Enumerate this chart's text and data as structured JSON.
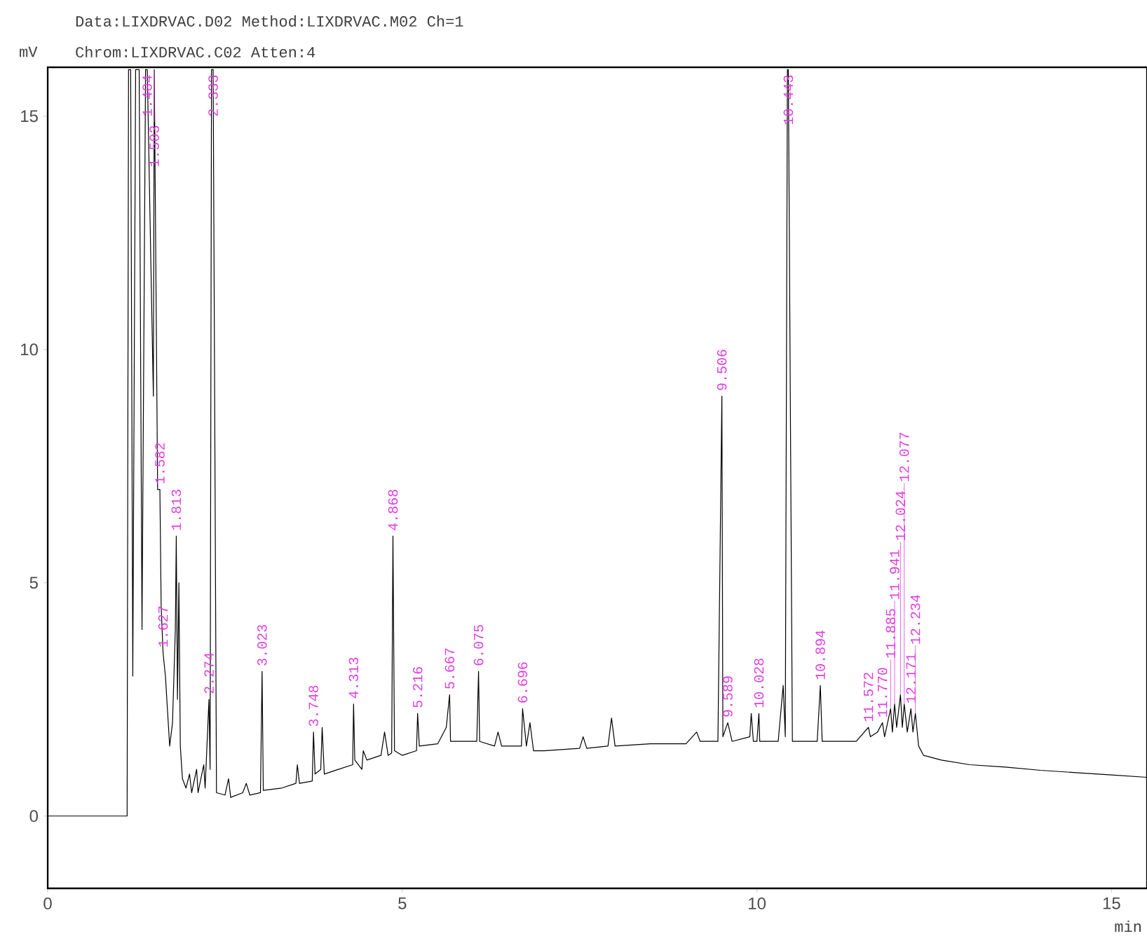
{
  "chart_data": {
    "type": "line",
    "title": "Data:LIXDRVAC.D02   Method:LIXDRVAC.M02   Ch=1",
    "subtitle": "Chrom:LIXDRVAC.C02   Atten:4",
    "xlabel": "min",
    "ylabel": "mV",
    "color": "#000000",
    "x": [
      0,
      1.12,
      1.14,
      1.17,
      1.2,
      1.24,
      1.29,
      1.33,
      1.38,
      1.404,
      1.49,
      1.503,
      1.55,
      1.582,
      1.6,
      1.627,
      1.66,
      1.7,
      1.72,
      1.76,
      1.8,
      1.813,
      1.83,
      1.85,
      1.87,
      1.9,
      1.95,
      2.0,
      2.03,
      2.1,
      2.12,
      2.2,
      2.22,
      2.274,
      2.29,
      2.31,
      2.333,
      2.38,
      2.5,
      2.55,
      2.58,
      2.75,
      2.8,
      2.85,
      3.0,
      3.023,
      3.04,
      3.3,
      3.5,
      3.52,
      3.55,
      3.73,
      3.748,
      3.77,
      3.85,
      3.87,
      3.9,
      4.1,
      4.3,
      4.313,
      4.33,
      4.43,
      4.45,
      4.5,
      4.7,
      4.75,
      4.8,
      4.85,
      4.868,
      4.89,
      5.0,
      5.2,
      5.216,
      5.24,
      5.5,
      5.62,
      5.667,
      5.68,
      5.9,
      6.05,
      6.075,
      6.09,
      6.3,
      6.35,
      6.4,
      6.68,
      6.696,
      6.75,
      6.8,
      6.85,
      7.0,
      7.5,
      7.55,
      7.6,
      7.9,
      7.95,
      8.0,
      8.5,
      9.0,
      9.15,
      9.2,
      9.45,
      9.506,
      9.52,
      9.589,
      9.65,
      9.9,
      9.92,
      9.95,
      10.0,
      10.028,
      10.04,
      10.3,
      10.37,
      10.4,
      10.43,
      10.443,
      10.5,
      10.85,
      10.894,
      10.92,
      11.4,
      11.572,
      11.6,
      11.7,
      11.77,
      11.8,
      11.885,
      11.91,
      11.941,
      11.97,
      12.024,
      12.05,
      12.077,
      12.12,
      12.171,
      12.2,
      12.234,
      12.28,
      12.35,
      12.6,
      13.0,
      13.5,
      14.0,
      14.5,
      15.0,
      15.5
    ],
    "values": [
      0,
      0,
      16,
      16,
      3.0,
      16,
      16,
      4,
      16,
      16,
      9,
      16,
      7,
      7.0,
      4.5,
      3.5,
      3.0,
      2.0,
      1.5,
      2.0,
      4.0,
      6.0,
      2.5,
      5.0,
      1.5,
      0.8,
      0.6,
      0.9,
      0.5,
      1.0,
      0.5,
      1.1,
      0.6,
      2.5,
      1.0,
      16,
      16,
      0.5,
      0.45,
      0.8,
      0.4,
      0.5,
      0.7,
      0.45,
      0.5,
      3.1,
      0.55,
      0.6,
      0.7,
      1.1,
      0.7,
      0.75,
      1.8,
      0.9,
      1.0,
      1.9,
      0.9,
      1.0,
      1.1,
      2.4,
      1.2,
      1.0,
      1.4,
      1.2,
      1.3,
      1.8,
      1.3,
      1.35,
      6.0,
      1.4,
      1.3,
      1.4,
      2.2,
      1.5,
      1.55,
      1.9,
      2.6,
      1.6,
      1.6,
      1.6,
      3.1,
      1.6,
      1.5,
      1.8,
      1.5,
      1.5,
      2.3,
      1.5,
      2.0,
      1.4,
      1.4,
      1.45,
      1.7,
      1.45,
      1.5,
      2.1,
      1.5,
      1.55,
      1.55,
      1.8,
      1.6,
      1.6,
      9.0,
      1.7,
      2.0,
      1.6,
      1.7,
      2.2,
      1.6,
      1.6,
      2.2,
      1.6,
      1.6,
      2.8,
      1.7,
      16,
      16,
      1.6,
      1.6,
      2.8,
      1.6,
      1.6,
      1.9,
      1.7,
      1.8,
      2.0,
      1.7,
      2.3,
      1.8,
      2.4,
      1.9,
      2.6,
      1.9,
      2.4,
      1.8,
      2.3,
      1.8,
      2.2,
      1.5,
      1.3,
      1.2,
      1.1,
      1.05,
      0.98,
      0.93,
      0.88,
      0.83
    ],
    "xlim": [
      0,
      15.5
    ],
    "ylim": [
      -1.55,
      16.05
    ],
    "xticks": [
      0,
      5,
      10,
      15
    ],
    "yticks": [
      0,
      5,
      10,
      15
    ],
    "annotations": [
      {
        "text": "1.404",
        "x": 1.404,
        "y": 16
      },
      {
        "text": "1.503",
        "x": 1.503,
        "y": 16
      },
      {
        "text": "1.582",
        "x": 1.582,
        "y": 7.0
      },
      {
        "text": "1.627",
        "x": 1.627,
        "y": 3.5
      },
      {
        "text": "1.813",
        "x": 1.813,
        "y": 6.0
      },
      {
        "text": "2.274",
        "x": 2.274,
        "y": 2.5
      },
      {
        "text": "2.333",
        "x": 2.333,
        "y": 16
      },
      {
        "text": "3.023",
        "x": 3.023,
        "y": 3.1
      },
      {
        "text": "3.748",
        "x": 3.748,
        "y": 1.8
      },
      {
        "text": "4.313",
        "x": 4.313,
        "y": 2.4
      },
      {
        "text": "4.868",
        "x": 4.868,
        "y": 6.0
      },
      {
        "text": "5.216",
        "x": 5.216,
        "y": 2.2
      },
      {
        "text": "5.667",
        "x": 5.667,
        "y": 2.6
      },
      {
        "text": "6.075",
        "x": 6.075,
        "y": 3.1
      },
      {
        "text": "6.696",
        "x": 6.696,
        "y": 2.3
      },
      {
        "text": "9.506",
        "x": 9.506,
        "y": 9.0
      },
      {
        "text": "9.589",
        "x": 9.589,
        "y": 2.0
      },
      {
        "text": "10.028",
        "x": 10.028,
        "y": 2.2
      },
      {
        "text": "10.443",
        "x": 10.443,
        "y": 16
      },
      {
        "text": "10.894",
        "x": 10.894,
        "y": 2.8
      },
      {
        "text": "11.572",
        "x": 11.572,
        "y": 1.9
      },
      {
        "text": "11.770",
        "x": 11.77,
        "y": 2.0
      },
      {
        "text": "11.885",
        "x": 11.885,
        "y": 2.3
      },
      {
        "text": "11.941",
        "x": 11.941,
        "y": 2.4
      },
      {
        "text": "12.024",
        "x": 12.024,
        "y": 2.6
      },
      {
        "text": "12.077",
        "x": 12.077,
        "y": 2.4
      },
      {
        "text": "12.171",
        "x": 12.171,
        "y": 2.3
      },
      {
        "text": "12.234",
        "x": 12.234,
        "y": 2.2
      }
    ]
  }
}
